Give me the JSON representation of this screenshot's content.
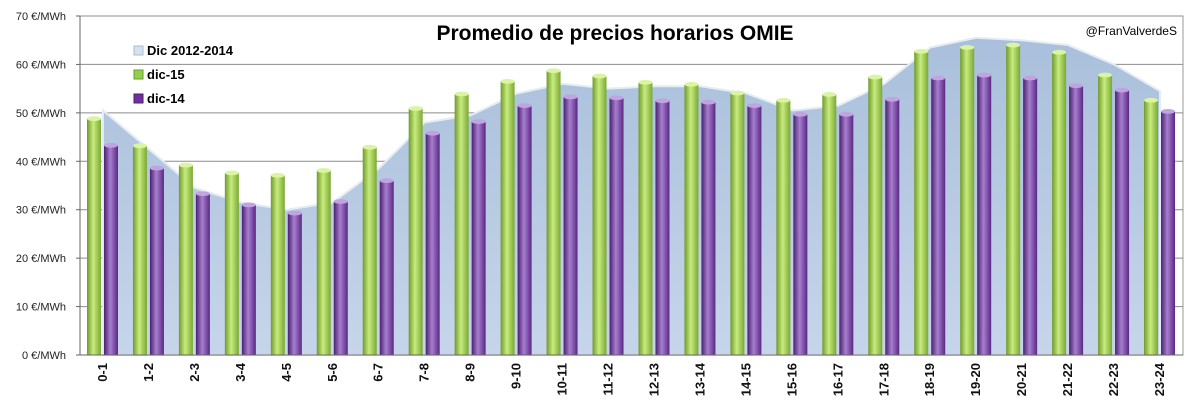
{
  "chart_data": {
    "type": "bar",
    "title": "Promedio de precios horarios OMIE",
    "credit": "@FranValverdeS",
    "categories": [
      "0-1",
      "1-2",
      "2-3",
      "3-4",
      "4-5",
      "5-6",
      "6-7",
      "7-8",
      "8-9",
      "9-10",
      "10-11",
      "11-12",
      "12-13",
      "13-14",
      "14-15",
      "15-16",
      "16-17",
      "17-18",
      "18-19",
      "19-20",
      "20-21",
      "21-22",
      "22-23",
      "23-24"
    ],
    "ylim": [
      0,
      70
    ],
    "yticks": [
      0,
      10,
      20,
      30,
      40,
      50,
      60,
      70
    ],
    "ytick_labels": [
      "0 €/MWh",
      "10 €/MWh",
      "20 €/MWh",
      "30 €/MWh",
      "40 €/MWh",
      "50 €/MWh",
      "60 €/MWh",
      "70 €/MWh"
    ],
    "grid": true,
    "legend_position": "top-left",
    "series": [
      {
        "name": "Dic 2012-2014",
        "kind": "area",
        "color": "#b8cce4",
        "values": [
          50.5,
          42.5,
          34.5,
          31.5,
          30,
          31.5,
          38.5,
          48,
          49.5,
          54,
          56,
          55,
          55.5,
          55.5,
          54,
          50.5,
          51.5,
          56,
          63.5,
          65.5,
          65,
          64,
          60,
          54.5
        ]
      },
      {
        "name": "dic-15",
        "kind": "bar",
        "color": "#92d050",
        "values": [
          48.8,
          43.2,
          39.2,
          37.6,
          37.1,
          38.1,
          42.9,
          50.9,
          53.9,
          56.5,
          58.7,
          57.6,
          56.3,
          55.9,
          54.1,
          52.6,
          53.8,
          57.4,
          62.7,
          63.5,
          64,
          62.5,
          57.8,
          52.6
        ]
      },
      {
        "name": "dic-14",
        "kind": "bar",
        "color": "#7030a0",
        "values": [
          43.3,
          38.6,
          33.3,
          31,
          29.3,
          31.7,
          36,
          45.8,
          48.2,
          51.5,
          53.3,
          53.1,
          52.5,
          52.2,
          51.5,
          49.7,
          49.7,
          52.8,
          57.2,
          57.8,
          57.2,
          55.6,
          54.7,
          50.3
        ]
      }
    ]
  }
}
